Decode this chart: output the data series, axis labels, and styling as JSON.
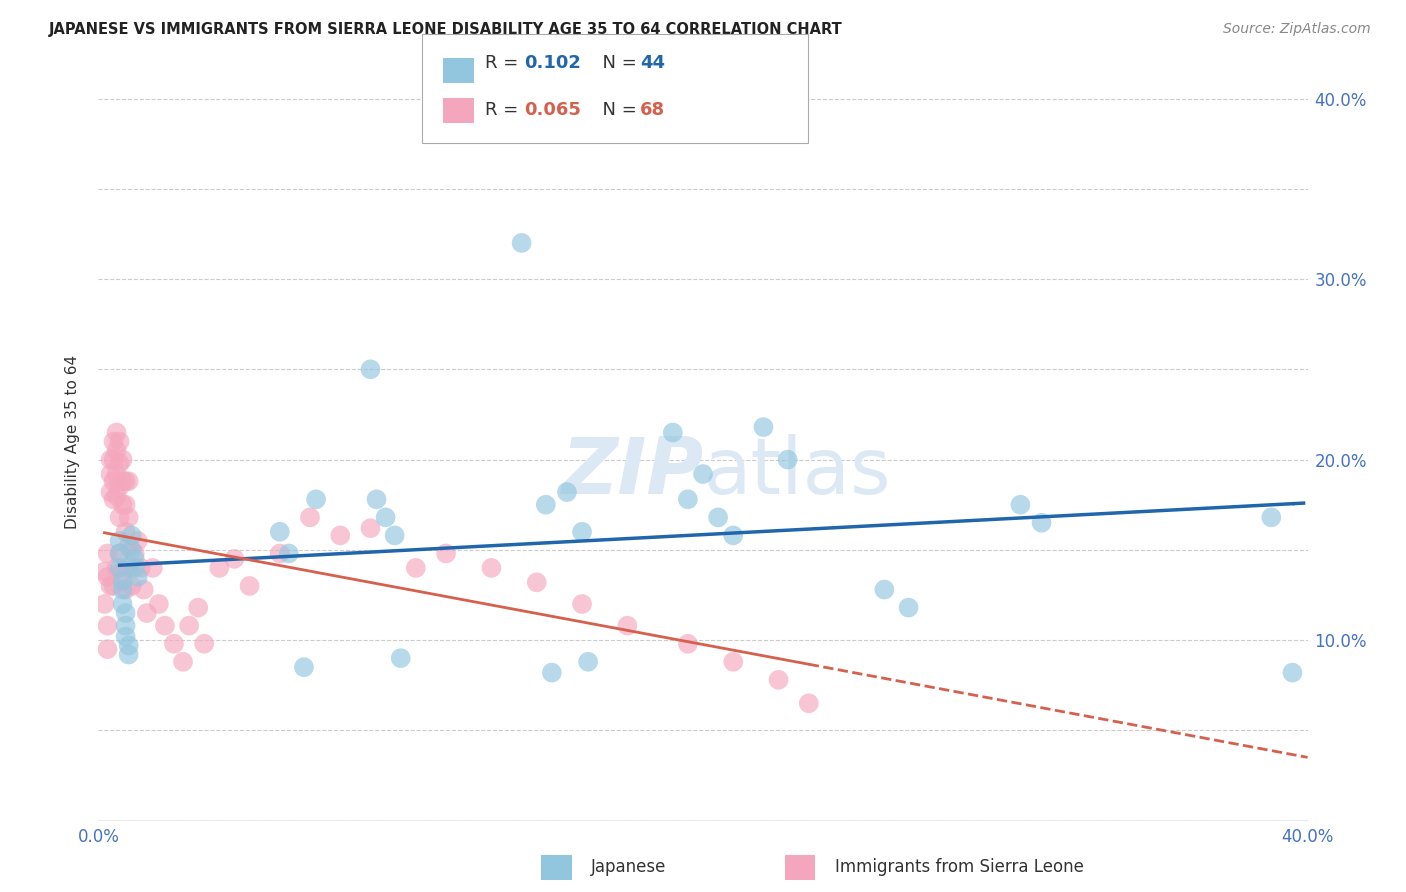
{
  "title": "JAPANESE VS IMMIGRANTS FROM SIERRA LEONE DISABILITY AGE 35 TO 64 CORRELATION CHART",
  "source": "Source: ZipAtlas.com",
  "ylabel": "Disability Age 35 to 64",
  "xlim": [
    0.0,
    0.4
  ],
  "ylim": [
    0.0,
    0.42
  ],
  "japanese_R": 0.102,
  "japanese_N": 44,
  "sierra_leone_R": 0.065,
  "sierra_leone_N": 68,
  "japanese_color": "#92c5de",
  "sierra_leone_color": "#f4a6bd",
  "japanese_line_color": "#2166ac",
  "sierra_leone_line_color": "#d6604d",
  "watermark_color": "#dce9f5",
  "japanese_x": [
    0.007,
    0.007,
    0.007,
    0.008,
    0.008,
    0.008,
    0.009,
    0.009,
    0.009,
    0.01,
    0.01,
    0.011,
    0.011,
    0.012,
    0.012,
    0.013,
    0.06,
    0.063,
    0.068,
    0.072,
    0.09,
    0.092,
    0.095,
    0.098,
    0.1,
    0.14,
    0.148,
    0.15,
    0.155,
    0.16,
    0.162,
    0.19,
    0.195,
    0.2,
    0.205,
    0.21,
    0.22,
    0.228,
    0.26,
    0.268,
    0.305,
    0.312,
    0.388,
    0.395
  ],
  "japanese_y": [
    0.155,
    0.148,
    0.14,
    0.133,
    0.128,
    0.12,
    0.115,
    0.108,
    0.102,
    0.097,
    0.092,
    0.158,
    0.15,
    0.145,
    0.14,
    0.135,
    0.16,
    0.148,
    0.085,
    0.178,
    0.25,
    0.178,
    0.168,
    0.158,
    0.09,
    0.32,
    0.175,
    0.082,
    0.182,
    0.16,
    0.088,
    0.215,
    0.178,
    0.192,
    0.168,
    0.158,
    0.218,
    0.2,
    0.128,
    0.118,
    0.175,
    0.165,
    0.168,
    0.082
  ],
  "sierra_leone_x": [
    0.002,
    0.002,
    0.003,
    0.003,
    0.003,
    0.003,
    0.004,
    0.004,
    0.004,
    0.004,
    0.005,
    0.005,
    0.005,
    0.005,
    0.005,
    0.006,
    0.006,
    0.006,
    0.006,
    0.006,
    0.007,
    0.007,
    0.007,
    0.007,
    0.007,
    0.008,
    0.008,
    0.008,
    0.008,
    0.009,
    0.009,
    0.009,
    0.009,
    0.01,
    0.01,
    0.01,
    0.01,
    0.011,
    0.012,
    0.013,
    0.014,
    0.015,
    0.016,
    0.018,
    0.02,
    0.022,
    0.025,
    0.028,
    0.03,
    0.033,
    0.035,
    0.04,
    0.045,
    0.05,
    0.06,
    0.07,
    0.08,
    0.09,
    0.105,
    0.115,
    0.13,
    0.145,
    0.16,
    0.175,
    0.195,
    0.21,
    0.225,
    0.235
  ],
  "sierra_leone_y": [
    0.138,
    0.12,
    0.148,
    0.135,
    0.108,
    0.095,
    0.2,
    0.192,
    0.182,
    0.13,
    0.21,
    0.2,
    0.188,
    0.178,
    0.13,
    0.215,
    0.205,
    0.192,
    0.18,
    0.14,
    0.21,
    0.198,
    0.185,
    0.168,
    0.148,
    0.2,
    0.188,
    0.175,
    0.138,
    0.188,
    0.175,
    0.16,
    0.128,
    0.188,
    0.168,
    0.152,
    0.14,
    0.13,
    0.148,
    0.155,
    0.14,
    0.128,
    0.115,
    0.14,
    0.12,
    0.108,
    0.098,
    0.088,
    0.108,
    0.118,
    0.098,
    0.14,
    0.145,
    0.13,
    0.148,
    0.168,
    0.158,
    0.162,
    0.14,
    0.148,
    0.14,
    0.132,
    0.12,
    0.108,
    0.098,
    0.088,
    0.078,
    0.065
  ]
}
